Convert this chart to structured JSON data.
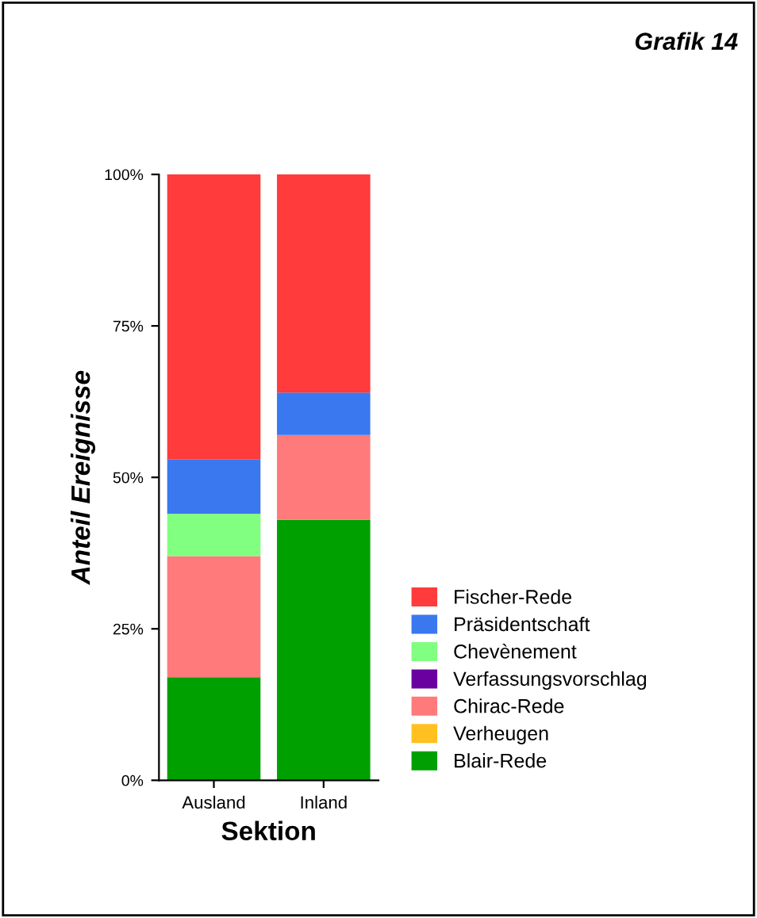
{
  "chart_data": {
    "type": "bar",
    "title": "Grafik 14",
    "xlabel": "Sektion",
    "ylabel": "Anteil Ereignisse",
    "stacked": true,
    "categories": [
      "Ausland",
      "Inland"
    ],
    "series": [
      {
        "name": "Blair-Rede",
        "color": "#00a000",
        "values": [
          17,
          43
        ]
      },
      {
        "name": "Verheugen",
        "color": "#ffc020",
        "values": [
          0,
          0
        ]
      },
      {
        "name": "Chirac-Rede",
        "color": "#ff7a7a",
        "values": [
          20,
          14
        ]
      },
      {
        "name": "Verfassungsvorschlag",
        "color": "#6a00a0",
        "values": [
          0,
          0
        ]
      },
      {
        "name": "Chevènement",
        "color": "#80ff80",
        "values": [
          7,
          0
        ]
      },
      {
        "name": "Präsidentschaft",
        "color": "#3a78f0",
        "values": [
          9,
          7
        ]
      },
      {
        "name": "Fischer-Rede",
        "color": "#ff3b3b",
        "values": [
          47,
          36
        ]
      }
    ],
    "ylim": [
      0,
      100
    ],
    "yticks": [
      {
        "value": 0,
        "label": "0%"
      },
      {
        "value": 25,
        "label": "25%"
      },
      {
        "value": 50,
        "label": "50%"
      },
      {
        "value": 75,
        "label": "75%"
      },
      {
        "value": 100,
        "label": "100%"
      }
    ],
    "legend": "right",
    "grid": false
  }
}
